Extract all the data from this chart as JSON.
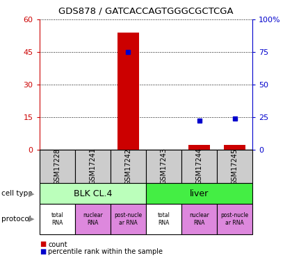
{
  "title": "GDS878 / GATCACCAGTGGGCGCTCGA",
  "samples": [
    "GSM17228",
    "GSM17241",
    "GSM17242",
    "GSM17243",
    "GSM17244",
    "GSM17245"
  ],
  "counts": [
    0,
    0,
    54,
    0,
    2,
    2
  ],
  "percentiles": [
    null,
    null,
    75,
    null,
    22,
    24
  ],
  "left_ylim": [
    0,
    60
  ],
  "right_ylim": [
    0,
    100
  ],
  "left_yticks": [
    0,
    15,
    30,
    45,
    60
  ],
  "right_yticks": [
    0,
    25,
    50,
    75,
    100
  ],
  "left_yticklabels": [
    "0",
    "15",
    "30",
    "45",
    "60"
  ],
  "right_yticklabels": [
    "0",
    "25",
    "50",
    "75",
    "100%"
  ],
  "left_color": "#cc0000",
  "right_color": "#0000cc",
  "bar_color": "#cc0000",
  "dot_color": "#0000cc",
  "cell_type_groups": [
    {
      "label": "BLK CL.4",
      "start": 0,
      "end": 3,
      "color": "#bbffbb"
    },
    {
      "label": "liver",
      "start": 3,
      "end": 6,
      "color": "#44ee44"
    }
  ],
  "prot_colors": [
    "#ffffff",
    "#dd88dd",
    "#dd88dd",
    "#ffffff",
    "#dd88dd",
    "#dd88dd"
  ],
  "prot_labels": [
    "total\nRNA",
    "nuclear\nRNA",
    "post-nucle\nar RNA",
    "total\nRNA",
    "nuclear\nRNA",
    "post-nucle\nar RNA"
  ],
  "sample_bg_color": "#cccccc",
  "grid_color": "#000000"
}
